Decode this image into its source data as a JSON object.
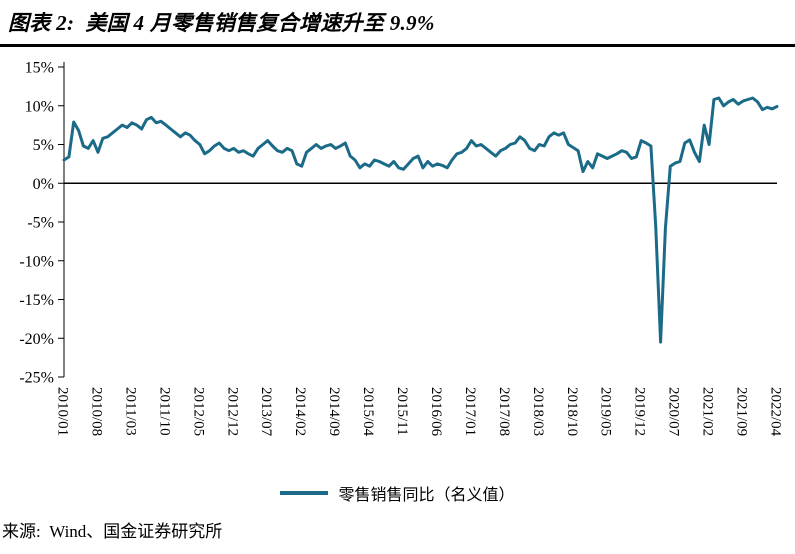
{
  "header": {
    "title": "图表 2:  美国 4 月零售销售复合增速升至 9.9%"
  },
  "legend": {
    "label": "零售销售同比（名义值）"
  },
  "footer": {
    "source": "来源:  Wind、国金证券研究所"
  },
  "colors": {
    "line": "#1B6A88",
    "axis": "#000000"
  },
  "chart_data": {
    "type": "line",
    "title": "美国 4 月零售销售复合增速升至 9.9%",
    "x_frequency": "monthly",
    "x_start": "2010/01",
    "x_end": "2022/04",
    "x_tick_step_months": 7,
    "x_tick_labels": [
      "2010/01",
      "2010/08",
      "2011/03",
      "2011/10",
      "2012/05",
      "2012/12",
      "2013/07",
      "2014/02",
      "2014/09",
      "2015/04",
      "2015/11",
      "2016/06",
      "2017/01",
      "2017/08",
      "2018/03",
      "2018/10",
      "2019/05",
      "2019/12",
      "2020/07",
      "2021/02",
      "2021/09",
      "2022/04"
    ],
    "ylim": [
      -25,
      15
    ],
    "y_ticks": [
      15,
      10,
      5,
      0,
      -5,
      -10,
      -15,
      -20,
      -25
    ],
    "y_tick_suffix": "%",
    "grid": "zero-line-only",
    "legend_position": "bottom",
    "series": [
      {
        "name": "零售销售同比（名义值）",
        "color": "#1B6A88",
        "values": [
          3.0,
          3.4,
          7.9,
          6.8,
          4.8,
          4.5,
          5.5,
          4.0,
          5.8,
          6.0,
          6.5,
          7.0,
          7.5,
          7.2,
          7.8,
          7.5,
          7.0,
          8.2,
          8.5,
          7.8,
          8.0,
          7.5,
          7.0,
          6.5,
          6.0,
          6.5,
          6.2,
          5.5,
          5.0,
          3.8,
          4.2,
          4.8,
          5.2,
          4.5,
          4.2,
          4.5,
          4.0,
          4.2,
          3.8,
          3.5,
          4.5,
          5.0,
          5.5,
          4.8,
          4.2,
          4.0,
          4.5,
          4.2,
          2.5,
          2.2,
          4.0,
          4.5,
          5.0,
          4.5,
          4.8,
          5.0,
          4.5,
          4.8,
          5.2,
          3.5,
          3.0,
          2.0,
          2.5,
          2.2,
          3.0,
          2.8,
          2.5,
          2.2,
          2.8,
          2.0,
          1.8,
          2.5,
          3.2,
          3.5,
          2.0,
          2.8,
          2.2,
          2.5,
          2.3,
          2.0,
          3.0,
          3.8,
          4.0,
          4.5,
          5.5,
          4.8,
          5.0,
          4.5,
          4.0,
          3.5,
          4.2,
          4.5,
          5.0,
          5.2,
          6.0,
          5.5,
          4.5,
          4.2,
          5.0,
          4.8,
          6.0,
          6.5,
          6.2,
          6.5,
          5.0,
          4.6,
          4.2,
          1.5,
          2.8,
          2.0,
          3.8,
          3.5,
          3.2,
          3.5,
          3.8,
          4.2,
          4.0,
          3.2,
          3.4,
          5.5,
          5.2,
          4.8,
          -5.5,
          -20.5,
          -5.8,
          2.2,
          2.6,
          2.8,
          5.2,
          5.6,
          4.0,
          2.8,
          7.5,
          5.0,
          10.8,
          11.0,
          10.0,
          10.5,
          10.8,
          10.2,
          10.6,
          10.8,
          11.0,
          10.5,
          9.5,
          9.8,
          9.6,
          9.9
        ]
      }
    ]
  }
}
